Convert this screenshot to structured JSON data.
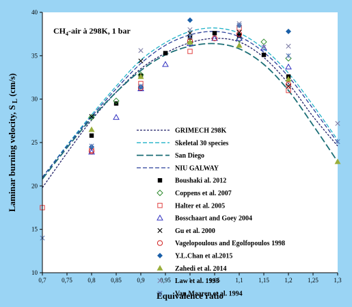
{
  "chart_data": {
    "type": "scatter",
    "annotation": {
      "prefix": "CH",
      "sub": "4",
      "suffix": "-air à 298K, 1 bar"
    },
    "xlabel": "Equivalence ratio",
    "ylabel": {
      "main": "Laminar burning velocity, S",
      "sub": "L",
      "unit": " (cm/s)"
    },
    "xlim": [
      0.7,
      1.3
    ],
    "ylim": [
      10,
      40
    ],
    "xticks": [
      "0,7",
      "0,75",
      "0,8",
      "0,85",
      "0,9",
      "0,95",
      "1",
      "1,05",
      "1,1",
      "1,15",
      "1,2",
      "1,25",
      "1,3"
    ],
    "yticks": [
      "10",
      "15",
      "20",
      "25",
      "30",
      "35",
      "40"
    ],
    "grid": false,
    "legend_position": "center-left",
    "lines": [
      {
        "name": "GRIMECH 298K",
        "style": "short-dash",
        "color": "#1f1f66",
        "x": [
          0.7,
          0.75,
          0.8,
          0.85,
          0.9,
          0.95,
          1.0,
          1.05,
          1.1,
          1.15,
          1.2,
          1.25,
          1.3
        ],
        "y": [
          19.8,
          23.8,
          27.6,
          30.8,
          33.5,
          35.3,
          36.5,
          37.0,
          36.6,
          34.8,
          31.8,
          28.0,
          24.6
        ]
      },
      {
        "name": "Skeletal 30 species",
        "style": "dash",
        "color": "#20b2c8",
        "x": [
          0.7,
          0.75,
          0.8,
          0.85,
          0.9,
          0.95,
          1.0,
          1.05,
          1.1,
          1.15,
          1.2,
          1.25,
          1.3
        ],
        "y": [
          21.0,
          24.7,
          28.2,
          31.5,
          34.5,
          36.5,
          37.8,
          38.2,
          37.6,
          35.8,
          33.0,
          29.3,
          25.3
        ]
      },
      {
        "name": "San Diego",
        "style": "long-dash",
        "color": "#1b6e76",
        "x": [
          0.7,
          0.75,
          0.8,
          0.85,
          0.9,
          0.95,
          1.0,
          1.05,
          1.1,
          1.15,
          1.2,
          1.25,
          1.3
        ],
        "y": [
          20.8,
          24.4,
          27.8,
          30.8,
          33.3,
          35.1,
          36.1,
          36.4,
          35.8,
          34.0,
          31.0,
          27.0,
          22.8
        ]
      },
      {
        "name": "NIU GALWAY",
        "style": "dash",
        "color": "#2a3f9a",
        "x": [
          0.7,
          0.75,
          0.8,
          0.85,
          0.9,
          0.95,
          1.0,
          1.05,
          1.1,
          1.15,
          1.2,
          1.25,
          1.3
        ],
        "y": [
          21.0,
          24.6,
          28.0,
          31.2,
          34.1,
          36.2,
          37.4,
          37.8,
          37.2,
          35.4,
          32.6,
          28.9,
          25.0
        ]
      }
    ],
    "series": [
      {
        "name": "Boushaki al. 2012",
        "marker": "square-filled",
        "color": "#000000",
        "x": [
          0.8,
          0.85,
          0.9,
          0.95,
          1.0,
          1.05,
          1.1,
          1.15,
          1.2
        ],
        "y": [
          25.8,
          29.5,
          32.7,
          35.3,
          37.1,
          37.6,
          37.3,
          35.1,
          32.6
        ]
      },
      {
        "name": "Coppens et al. 2007",
        "marker": "diamond-open",
        "color": "#2e8b2e",
        "x": [
          0.8,
          0.85,
          0.9,
          1.0,
          1.1,
          1.15,
          1.2
        ],
        "y": [
          27.9,
          29.8,
          32.8,
          36.5,
          36.9,
          36.6,
          34.7
        ]
      },
      {
        "name": "Halter et al. 2005",
        "marker": "square-open",
        "color": "#e04040",
        "x": [
          0.7,
          0.8,
          0.9,
          1.0,
          1.1,
          1.2
        ],
        "y": [
          17.5,
          24.1,
          31.8,
          35.5,
          38.2,
          31.0
        ]
      },
      {
        "name": "Bosschaart and Goey 2004",
        "marker": "triangle-open",
        "color": "#3030c0",
        "x": [
          0.8,
          0.85,
          0.9,
          0.95,
          1.0,
          1.05,
          1.1,
          1.15,
          1.2
        ],
        "y": [
          23.9,
          27.9,
          31.2,
          34.0,
          36.4,
          37.0,
          37.0,
          35.9,
          33.7
        ]
      },
      {
        "name": "Gu et al. 2000",
        "marker": "x",
        "color": "#000000",
        "x": [
          0.8,
          0.9,
          1.0,
          1.1,
          1.2
        ],
        "y": [
          28.0,
          34.4,
          37.6,
          37.7,
          31.5
        ]
      },
      {
        "name": "Vagelopoulous and Egolfopoulos 1998",
        "marker": "circle-open",
        "color": "#d02020",
        "x": [
          0.8,
          0.9,
          1.0,
          1.05,
          1.1,
          1.2
        ],
        "y": [
          24.0,
          31.3,
          36.7,
          37.0,
          37.5,
          31.7
        ]
      },
      {
        "name": "Y.L.Chan et al.2015",
        "marker": "diamond-filled",
        "color": "#1a5fa8",
        "x": [
          0.8,
          0.9,
          1.0,
          1.1,
          1.2
        ],
        "y": [
          24.5,
          31.4,
          39.1,
          38.5,
          37.8
        ]
      },
      {
        "name": "Zahedi et al. 2014",
        "marker": "triangle-filled",
        "color": "#9aae3a",
        "x": [
          0.8,
          0.9,
          1.0,
          1.1,
          1.2,
          1.3
        ],
        "y": [
          26.5,
          32.6,
          36.6,
          36.2,
          32.3,
          22.8
        ]
      },
      {
        "name": "Law et al. 1993",
        "marker": "x",
        "color": "#8080a8",
        "x": [
          0.9,
          1.0,
          1.1,
          1.15,
          1.2,
          1.3
        ],
        "y": [
          35.6,
          38.0,
          38.7,
          36.0,
          36.1,
          27.2
        ]
      },
      {
        "name": "Van Maaren et al. 1994",
        "marker": "asterisk",
        "color": "#5a7ab8",
        "x": [
          0.7,
          0.8,
          0.9,
          1.0,
          1.1,
          1.2,
          1.3
        ],
        "y": [
          14.0,
          24.6,
          31.5,
          37.2,
          38.5,
          35.0,
          25.1
        ]
      }
    ]
  }
}
